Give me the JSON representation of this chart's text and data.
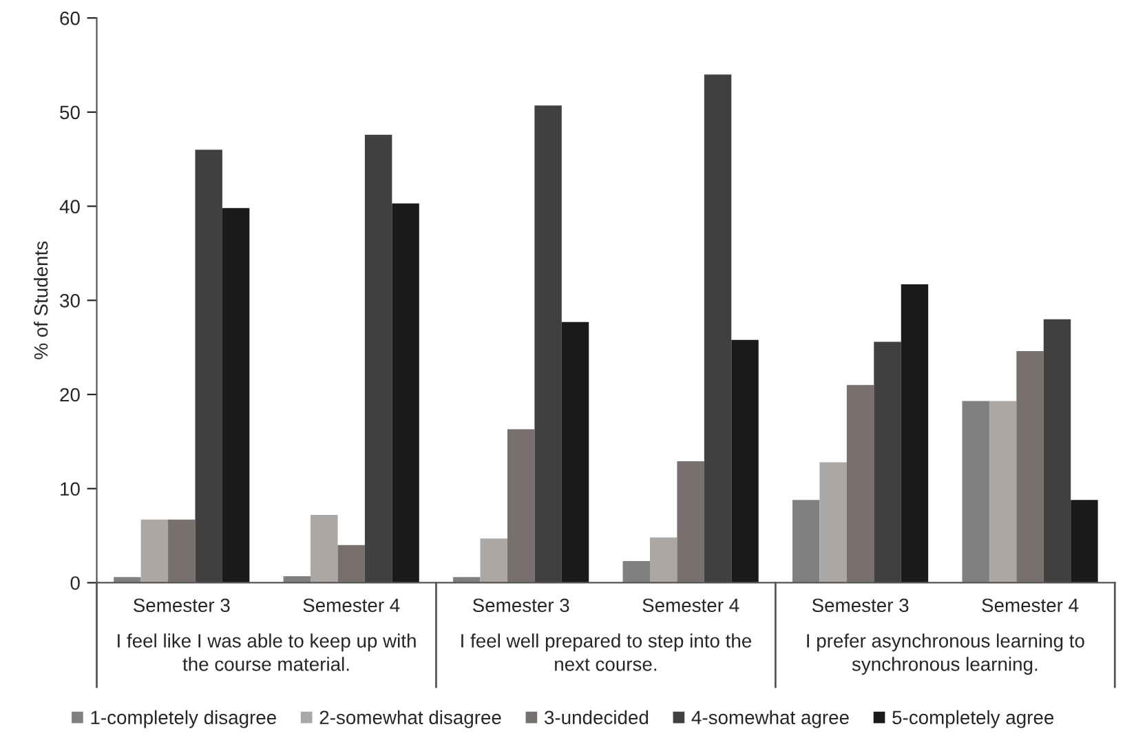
{
  "chart_data": {
    "type": "bar",
    "ylabel": "% of Students",
    "categories": [
      "Semester 3",
      "Semester 4",
      "Semester 3",
      "Semester 4",
      "Semester 3",
      "Semester 4"
    ],
    "annotations": [
      "I feel like I was able to keep up with\nthe course material.",
      "I feel well prepared to step into the\nnext course.",
      "I prefer asynchronous learning to\nsynchronous learning."
    ],
    "series": [
      {
        "name": "1-completely disagree",
        "color": "#808080",
        "values": [
          0.6,
          0.7,
          0.6,
          2.3,
          8.8,
          19.3
        ]
      },
      {
        "name": "2-somewhat disagree",
        "color": "#aaa7a5",
        "values": [
          6.7,
          7.2,
          4.7,
          4.8,
          12.8,
          19.3
        ]
      },
      {
        "name": "3-undecided",
        "color": "#77706e",
        "values": [
          6.7,
          4.0,
          16.3,
          12.9,
          21.0,
          24.6
        ]
      },
      {
        "name": "4-somewhat agree",
        "color": "#404040",
        "values": [
          46.0,
          47.6,
          50.7,
          54.0,
          25.6,
          28.0
        ]
      },
      {
        "name": "5-completely agree",
        "color": "#1a1a1a",
        "values": [
          39.8,
          40.3,
          27.7,
          25.8,
          31.7,
          8.8
        ]
      }
    ],
    "ylim": [
      0,
      60
    ],
    "yticks": [
      0,
      10,
      20,
      30,
      40,
      50,
      60
    ],
    "grid": false,
    "legend": "bottom"
  }
}
